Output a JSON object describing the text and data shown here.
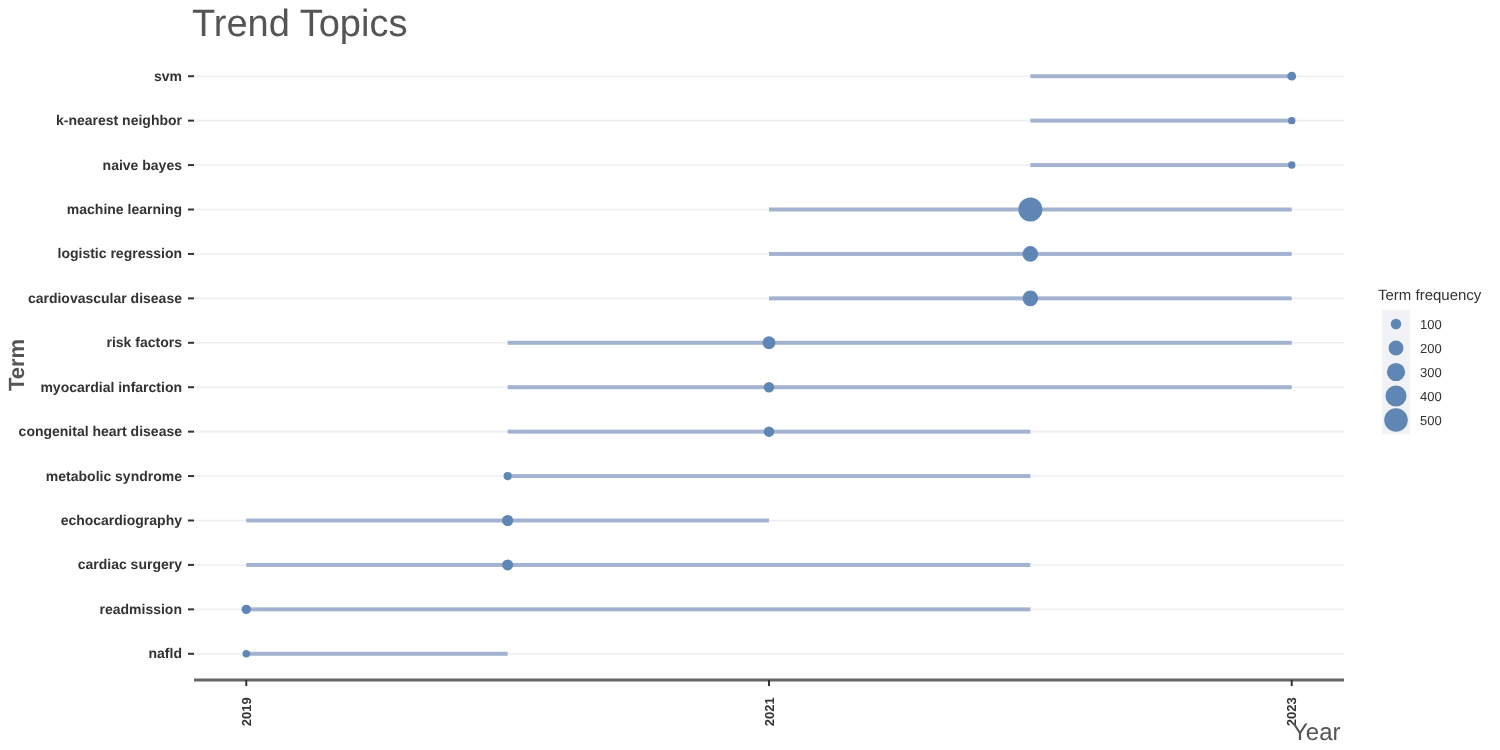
{
  "chart_data": {
    "type": "bubble",
    "title": "Trend Topics",
    "xlabel": "Year",
    "ylabel": "Term",
    "orientation": "horizontal",
    "legend_title": "Term frequency",
    "size_legend": [
      100,
      200,
      300,
      400,
      500
    ],
    "grid": "y",
    "categories": [
      "svm",
      "k-nearest neighbor",
      "naive bayes",
      "machine learning",
      "logistic regression",
      "cardiovascular disease",
      "risk factors",
      "myocardial infarction",
      "congenital heart disease",
      "metabolic syndrome",
      "echocardiography",
      "cardiac surgery",
      "readmission",
      "nafld"
    ],
    "xlim": [
      2018.8,
      2023.2
    ],
    "xticks": [
      2019,
      2021,
      2023
    ],
    "series": [
      {
        "type": "bar",
        "color": "#a3b3cf",
        "base": [
          2022,
          2022,
          2022,
          2021,
          2021,
          2021,
          2020,
          2020,
          2020,
          2020,
          2019,
          2019,
          2019,
          2019
        ],
        "values": [
          1,
          1,
          1,
          2,
          2,
          2,
          3,
          3,
          2,
          2,
          2,
          3,
          3,
          1
        ]
      },
      {
        "type": "bubble",
        "color": "#5f86b4",
        "values": [
          2023,
          2023,
          2023,
          2022,
          2022,
          2022,
          2021,
          2021,
          2021,
          2020,
          2020,
          2020,
          2019,
          2019
        ],
        "sizes": [
          70,
          50,
          50,
          520,
          220,
          220,
          150,
          100,
          100,
          60,
          110,
          110,
          80,
          50
        ]
      }
    ]
  }
}
